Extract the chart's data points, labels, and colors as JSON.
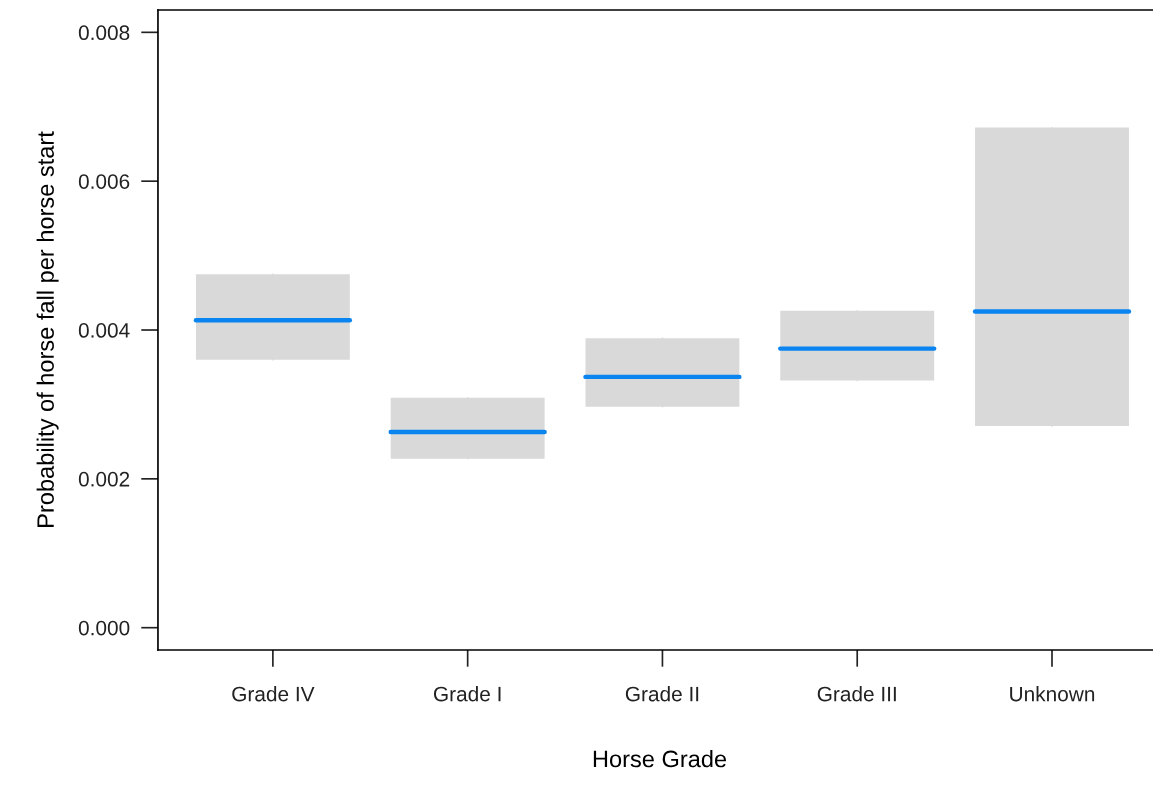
{
  "chart_data": {
    "type": "box",
    "xlabel": "Horse Grade",
    "ylabel": "Probability of horse fall per horse start",
    "categories": [
      "Grade IV",
      "Grade I",
      "Grade II",
      "Grade III",
      "Unknown"
    ],
    "series": [
      {
        "color": "#d9d9d9",
        "boxes": [
          {
            "low": 0.0036,
            "q1": 0.0036,
            "median": 0.00413,
            "q3": 0.00475,
            "high": 0.00475
          },
          {
            "low": 0.00227,
            "q1": 0.00227,
            "median": 0.00263,
            "q3": 0.00309,
            "high": 0.00309
          },
          {
            "low": 0.00297,
            "q1": 0.00297,
            "median": 0.00337,
            "q3": 0.00389,
            "high": 0.00389
          },
          {
            "low": 0.00332,
            "q1": 0.00332,
            "median": 0.00375,
            "q3": 0.00426,
            "high": 0.00426
          },
          {
            "low": 0.00271,
            "q1": 0.00271,
            "median": 0.00425,
            "q3": 0.00672,
            "high": 0.00672
          }
        ]
      }
    ],
    "ylim": [
      -0.0003,
      0.0083
    ],
    "yticks": [
      {
        "value": 0,
        "label": "0.000"
      },
      {
        "value": 0.002,
        "label": "0.002"
      },
      {
        "value": 0.004,
        "label": "0.004"
      },
      {
        "value": 0.006,
        "label": "0.006"
      },
      {
        "value": 0.008,
        "label": "0.008"
      }
    ],
    "grid": false
  }
}
